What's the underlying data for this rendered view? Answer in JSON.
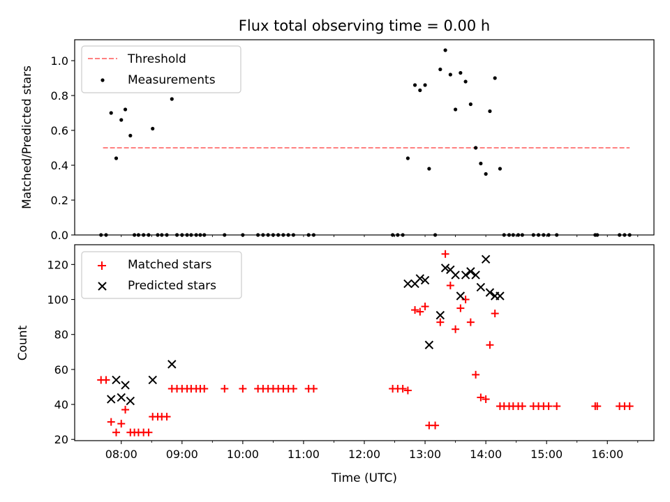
{
  "figure": {
    "title": "Flux total observing time = 0.00 h",
    "xlabel": "Time (UTC)"
  },
  "chart_data": [
    {
      "type": "scatter",
      "ylabel": "Matched/Predicted stars",
      "xlim": [
        "07:14",
        "16:46"
      ],
      "ylim": [
        0,
        1.12
      ],
      "yticks": [
        0.0,
        0.2,
        0.4,
        0.6,
        0.8,
        1.0
      ],
      "ytick_labels": [
        "0.0",
        "0.2",
        "0.4",
        "0.6",
        "0.8",
        "1.0"
      ],
      "xticks_minor": [
        "08:00",
        "08:30",
        "09:00",
        "09:30",
        "10:00",
        "10:30",
        "11:00",
        "11:30",
        "12:00",
        "12:30",
        "13:00",
        "13:30",
        "14:00",
        "14:30",
        "15:00",
        "15:30",
        "16:00",
        "16:30"
      ],
      "legend_position": "upper left",
      "threshold": {
        "name": "Threshold",
        "value": 0.5,
        "x_range": [
          "07:42",
          "16:22"
        ],
        "color": "#ff8080"
      },
      "series": [
        {
          "name": "Measurements",
          "marker": "dot",
          "color": "#000000",
          "points": [
            [
              "07:40",
              0
            ],
            [
              "07:45",
              0
            ],
            [
              "07:50",
              0.7
            ],
            [
              "07:55",
              0.44
            ],
            [
              "08:00",
              0.66
            ],
            [
              "08:04",
              0.72
            ],
            [
              "08:09",
              0.57
            ],
            [
              "08:13",
              0
            ],
            [
              "08:17",
              0
            ],
            [
              "08:22",
              0
            ],
            [
              "08:27",
              0
            ],
            [
              "08:31",
              0.61
            ],
            [
              "08:36",
              0
            ],
            [
              "08:40",
              0
            ],
            [
              "08:45",
              0
            ],
            [
              "08:50",
              0.78
            ],
            [
              "08:55",
              0
            ],
            [
              "09:00",
              0
            ],
            [
              "09:05",
              0
            ],
            [
              "09:09",
              0
            ],
            [
              "09:14",
              0
            ],
            [
              "09:18",
              0
            ],
            [
              "09:22",
              0
            ],
            [
              "09:42",
              0
            ],
            [
              "10:00",
              0
            ],
            [
              "10:15",
              0
            ],
            [
              "10:20",
              0
            ],
            [
              "10:25",
              0
            ],
            [
              "10:30",
              0
            ],
            [
              "10:35",
              0
            ],
            [
              "10:40",
              0
            ],
            [
              "10:45",
              0
            ],
            [
              "10:50",
              0
            ],
            [
              "11:05",
              0
            ],
            [
              "11:10",
              0
            ],
            [
              "12:28",
              0
            ],
            [
              "12:33",
              0
            ],
            [
              "12:38",
              0
            ],
            [
              "12:43",
              0.44
            ],
            [
              "12:50",
              0.86
            ],
            [
              "12:55",
              0.83
            ],
            [
              "13:00",
              0.86
            ],
            [
              "13:04",
              0.38
            ],
            [
              "13:10",
              0
            ],
            [
              "13:15",
              0.95
            ],
            [
              "13:20",
              1.06
            ],
            [
              "13:25",
              0.92
            ],
            [
              "13:30",
              0.72
            ],
            [
              "13:35",
              0.93
            ],
            [
              "13:40",
              0.88
            ],
            [
              "13:45",
              0.75
            ],
            [
              "13:50",
              0.5
            ],
            [
              "13:55",
              0.41
            ],
            [
              "14:00",
              0.35
            ],
            [
              "14:04",
              0.71
            ],
            [
              "14:09",
              0.9
            ],
            [
              "14:14",
              0.38
            ],
            [
              "14:18",
              0
            ],
            [
              "14:23",
              0
            ],
            [
              "14:27",
              0
            ],
            [
              "14:32",
              0
            ],
            [
              "14:36",
              0
            ],
            [
              "14:47",
              0
            ],
            [
              "14:52",
              0
            ],
            [
              "14:57",
              0
            ],
            [
              "15:02",
              0
            ],
            [
              "15:10",
              0
            ],
            [
              "15:48",
              0
            ],
            [
              "15:50",
              0
            ],
            [
              "16:12",
              0
            ],
            [
              "16:17",
              0
            ],
            [
              "16:22",
              0
            ]
          ]
        }
      ]
    },
    {
      "type": "scatter",
      "ylabel": "Count",
      "xlim": [
        "07:14",
        "16:46"
      ],
      "ylim": [
        19.3,
        131.3
      ],
      "yticks": [
        20,
        40,
        60,
        80,
        100,
        120
      ],
      "ytick_labels": [
        "20",
        "40",
        "60",
        "80",
        "100",
        "120"
      ],
      "xticks": [
        "08:00",
        "09:00",
        "10:00",
        "11:00",
        "12:00",
        "13:00",
        "14:00",
        "15:00",
        "16:00"
      ],
      "xtick_labels": [
        "08:00",
        "09:00",
        "10:00",
        "11:00",
        "12:00",
        "13:00",
        "14:00",
        "15:00",
        "16:00"
      ],
      "xticks_minor": [
        "08:30",
        "09:30",
        "10:30",
        "11:30",
        "12:30",
        "13:30",
        "14:30",
        "15:30",
        "16:30"
      ],
      "legend_position": "upper left",
      "series": [
        {
          "name": "Matched stars",
          "marker": "plus",
          "color": "#ff0000",
          "points": [
            [
              "07:40",
              54
            ],
            [
              "07:45",
              54
            ],
            [
              "07:50",
              30
            ],
            [
              "07:55",
              24
            ],
            [
              "08:00",
              29
            ],
            [
              "08:04",
              37
            ],
            [
              "08:09",
              24
            ],
            [
              "08:13",
              24
            ],
            [
              "08:17",
              24
            ],
            [
              "08:22",
              24
            ],
            [
              "08:27",
              24
            ],
            [
              "08:31",
              33
            ],
            [
              "08:36",
              33
            ],
            [
              "08:40",
              33
            ],
            [
              "08:45",
              33
            ],
            [
              "08:50",
              49
            ],
            [
              "08:55",
              49
            ],
            [
              "09:00",
              49
            ],
            [
              "09:05",
              49
            ],
            [
              "09:09",
              49
            ],
            [
              "09:14",
              49
            ],
            [
              "09:18",
              49
            ],
            [
              "09:22",
              49
            ],
            [
              "09:42",
              49
            ],
            [
              "10:00",
              49
            ],
            [
              "10:15",
              49
            ],
            [
              "10:20",
              49
            ],
            [
              "10:25",
              49
            ],
            [
              "10:30",
              49
            ],
            [
              "10:35",
              49
            ],
            [
              "10:40",
              49
            ],
            [
              "10:45",
              49
            ],
            [
              "10:50",
              49
            ],
            [
              "11:05",
              49
            ],
            [
              "11:10",
              49
            ],
            [
              "12:28",
              49
            ],
            [
              "12:33",
              49
            ],
            [
              "12:38",
              49
            ],
            [
              "12:43",
              48
            ],
            [
              "12:50",
              94
            ],
            [
              "12:55",
              93
            ],
            [
              "13:00",
              96
            ],
            [
              "13:04",
              28
            ],
            [
              "13:10",
              28
            ],
            [
              "13:15",
              87
            ],
            [
              "13:20",
              126
            ],
            [
              "13:25",
              108
            ],
            [
              "13:30",
              83
            ],
            [
              "13:35",
              95
            ],
            [
              "13:40",
              100
            ],
            [
              "13:45",
              87
            ],
            [
              "13:50",
              57
            ],
            [
              "13:55",
              44
            ],
            [
              "14:00",
              43
            ],
            [
              "14:04",
              74
            ],
            [
              "14:09",
              92
            ],
            [
              "14:14",
              39
            ],
            [
              "14:18",
              39
            ],
            [
              "14:23",
              39
            ],
            [
              "14:27",
              39
            ],
            [
              "14:32",
              39
            ],
            [
              "14:36",
              39
            ],
            [
              "14:47",
              39
            ],
            [
              "14:52",
              39
            ],
            [
              "14:57",
              39
            ],
            [
              "15:02",
              39
            ],
            [
              "15:10",
              39
            ],
            [
              "15:48",
              39
            ],
            [
              "15:50",
              39
            ],
            [
              "16:12",
              39
            ],
            [
              "16:17",
              39
            ],
            [
              "16:22",
              39
            ]
          ]
        },
        {
          "name": "Predicted stars",
          "marker": "x",
          "color": "#000000",
          "points": [
            [
              "07:50",
              43
            ],
            [
              "07:55",
              54
            ],
            [
              "08:00",
              44
            ],
            [
              "08:04",
              51
            ],
            [
              "08:09",
              42
            ],
            [
              "08:31",
              54
            ],
            [
              "08:50",
              63
            ],
            [
              "12:43",
              109
            ],
            [
              "12:50",
              109
            ],
            [
              "12:55",
              112
            ],
            [
              "13:00",
              111
            ],
            [
              "13:04",
              74
            ],
            [
              "13:15",
              91
            ],
            [
              "13:20",
              118
            ],
            [
              "13:25",
              117
            ],
            [
              "13:30",
              114
            ],
            [
              "13:35",
              102
            ],
            [
              "13:40",
              114
            ],
            [
              "13:45",
              116
            ],
            [
              "13:50",
              114
            ],
            [
              "13:55",
              107
            ],
            [
              "14:00",
              123
            ],
            [
              "14:04",
              104
            ],
            [
              "14:09",
              102
            ],
            [
              "14:14",
              102
            ]
          ]
        }
      ]
    }
  ]
}
